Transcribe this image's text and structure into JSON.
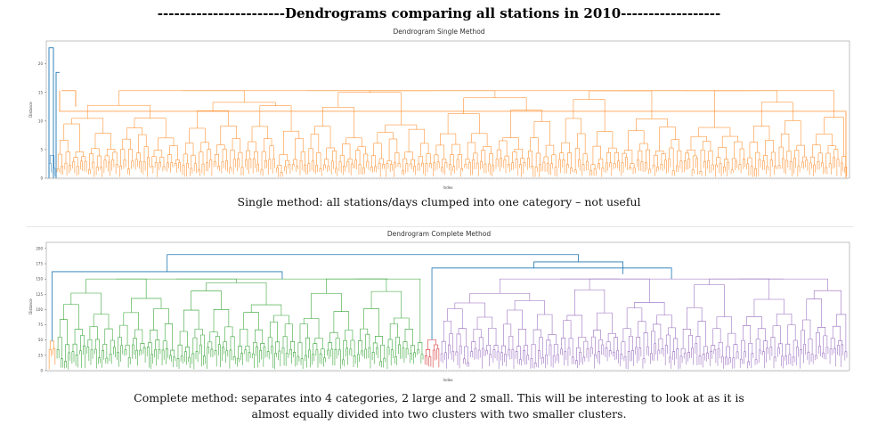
{
  "slide": {
    "title": "-----------------------Dendrograms comparing all stations in 2010------------------",
    "caption_single": "Single method: all stations/days clumped into one category – not useful",
    "caption_complete_line1": "Complete method: separates into 4 categories, 2 large and 2 small.  This will be interesting to look at as it is",
    "caption_complete_line2": "almost equally divided into two clusters with two smaller clusters."
  },
  "colors": {
    "orange": "#ff7f0e",
    "blue": "#1f77b4",
    "green": "#2ca02c",
    "red": "#d62728",
    "purple": "#9467bd"
  },
  "chart_data": [
    {
      "type": "dendrogram",
      "title": "Dendrogram Single Method",
      "xlabel": "Index",
      "ylabel": "Distance",
      "yticks": [
        "0",
        "5",
        "10",
        "15",
        "20"
      ],
      "ylim": [
        0,
        24
      ],
      "clusters": [
        {
          "color": "blue",
          "leaf_fraction": 0.01
        },
        {
          "color": "orange",
          "leaf_fraction": 0.99
        }
      ],
      "top_merge_heights": [
        22.8,
        18.5,
        15.3,
        11.9,
        11.5
      ]
    },
    {
      "type": "dendrogram",
      "title": "Dendrogram Complete Method",
      "xlabel": "Index",
      "ylabel": "Distance",
      "yticks": [
        "0",
        "25",
        "50",
        "75",
        "100",
        "125",
        "150",
        "175",
        "200"
      ],
      "ylim": [
        0,
        210
      ],
      "clusters": [
        {
          "color": "orange",
          "leaf_fraction": 0.01
        },
        {
          "color": "green",
          "leaf_fraction": 0.46
        },
        {
          "color": "red",
          "leaf_fraction": 0.02
        },
        {
          "color": "purple",
          "leaf_fraction": 0.51
        }
      ],
      "top_merge_heights": [
        190,
        178,
        162,
        145,
        128
      ]
    }
  ]
}
